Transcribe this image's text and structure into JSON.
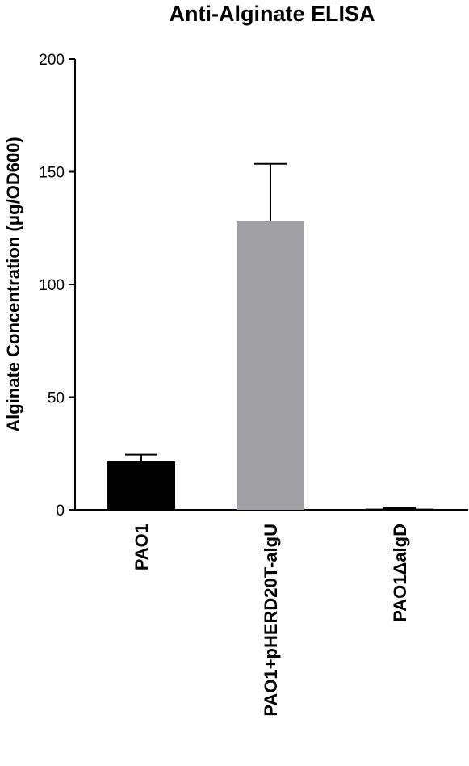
{
  "chart_data": {
    "type": "bar",
    "title": "Anti-Alginate ELISA",
    "y_label": "Alginate Concentration (μg/OD600)",
    "categories": [
      "PAO1",
      "PAO1+pHERD20T-algU",
      "PAO1ΔalgD"
    ],
    "values": [
      21.5,
      128,
      0.5
    ],
    "errors": [
      3,
      25.5,
      0.2
    ],
    "colors": [
      "#000000",
      "#a0a0a4",
      "#000000"
    ],
    "ylim": [
      0,
      200
    ],
    "yticks": [
      0,
      50,
      100,
      150,
      200
    ],
    "grid": false
  }
}
